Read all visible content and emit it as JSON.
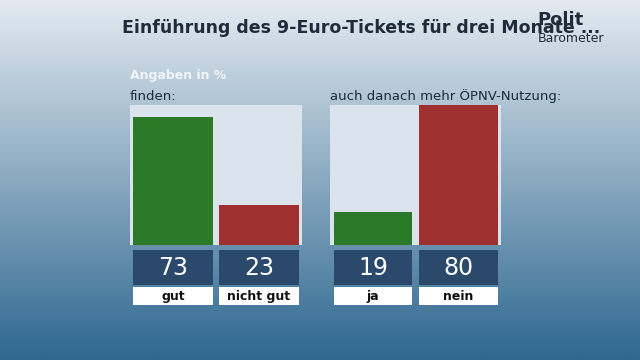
{
  "title": "Einführung des 9-Euro-Tickets für drei Monate ...",
  "subtitle": "Angaben in %",
  "logo": [
    "Polit",
    "Barometer"
  ],
  "chart_data": [
    {
      "type": "bar",
      "title": "finden:",
      "categories": [
        "gut",
        "nicht gut"
      ],
      "values": [
        73,
        23
      ],
      "colors": [
        "#2a7a2a",
        "#a0302f"
      ],
      "ylim": [
        0,
        80
      ],
      "tick_labels": false,
      "data_labels": true
    },
    {
      "type": "bar",
      "title": "auch danach mehr ÖPNV-Nutzung:",
      "categories": [
        "ja",
        "nein"
      ],
      "values": [
        19,
        80
      ],
      "colors": [
        "#2a7a2a",
        "#a0302f"
      ],
      "ylim": [
        0,
        80
      ],
      "tick_labels": false,
      "data_labels": true
    }
  ]
}
